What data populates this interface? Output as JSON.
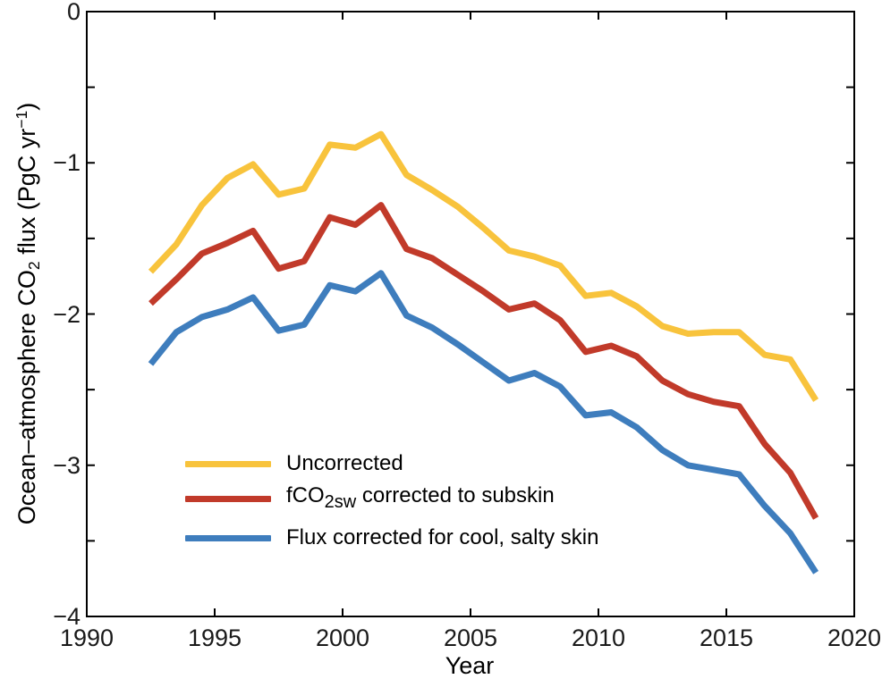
{
  "chart_data": {
    "type": "line",
    "title": "",
    "xlabel": "Year",
    "ylabel": "Ocean–atmosphere CO2 flux (PgC yr−1)",
    "ylabel_parts": [
      "Ocean–atmosphere CO",
      "2",
      " flux (PgC yr",
      "−1",
      ")"
    ],
    "xlim": [
      1990,
      2020
    ],
    "ylim": [
      -4,
      0
    ],
    "grid": false,
    "tick_direction": "in",
    "legend_position": "inside-lower-left",
    "frame_color": "#000000",
    "x": [
      1992.5,
      1993.5,
      1994.5,
      1995.5,
      1996.5,
      1997.5,
      1998.5,
      1999.5,
      2000.5,
      2001.5,
      2002.5,
      2003.5,
      2004.5,
      2005.5,
      2006.5,
      2007.5,
      2008.5,
      2009.5,
      2010.5,
      2011.5,
      2012.5,
      2013.5,
      2014.5,
      2015.5,
      2016.5,
      2017.5,
      2018.5
    ],
    "series": [
      {
        "name": "Uncorrected",
        "color": "#F8C33C",
        "values": [
          -1.72,
          -1.54,
          -1.28,
          -1.1,
          -1.01,
          -1.21,
          -1.17,
          -0.88,
          -0.9,
          -0.81,
          -1.08,
          -1.18,
          -1.29,
          -1.43,
          -1.58,
          -1.62,
          -1.68,
          -1.88,
          -1.86,
          -1.95,
          -2.08,
          -2.13,
          -2.12,
          -2.12,
          -2.27,
          -2.3,
          -2.57
        ]
      },
      {
        "name": "fCO2sw corrected to subskin",
        "color": "#C13A2A",
        "values": [
          -1.93,
          -1.77,
          -1.6,
          -1.53,
          -1.45,
          -1.7,
          -1.65,
          -1.36,
          -1.41,
          -1.28,
          -1.57,
          -1.63,
          -1.74,
          -1.85,
          -1.97,
          -1.93,
          -2.04,
          -2.25,
          -2.21,
          -2.28,
          -2.44,
          -2.53,
          -2.58,
          -2.61,
          -2.86,
          -3.05,
          -3.35
        ]
      },
      {
        "name": "Flux corrected for cool, salty skin",
        "color": "#3E7DBD",
        "values": [
          -2.33,
          -2.12,
          -2.02,
          -1.97,
          -1.89,
          -2.11,
          -2.07,
          -1.81,
          -1.85,
          -1.73,
          -2.01,
          -2.09,
          -2.2,
          -2.32,
          -2.44,
          -2.39,
          -2.48,
          -2.67,
          -2.65,
          -2.75,
          -2.9,
          -3.0,
          -3.03,
          -3.06,
          -3.27,
          -3.45,
          -3.71
        ]
      }
    ],
    "xticks": {
      "values": [
        1990,
        1995,
        2000,
        2005,
        2010,
        2015,
        2020
      ],
      "labels": [
        "1990",
        "1995",
        "2000",
        "2005",
        "2010",
        "2015",
        "2020"
      ]
    },
    "yticks": {
      "values": [
        0,
        -1,
        -2,
        -3,
        -4
      ],
      "labels": [
        "0",
        "−1",
        "−2",
        "−3",
        "−4"
      ]
    },
    "y_minor_tick_step": 0.5
  },
  "legend": {
    "items": [
      {
        "label": "Uncorrected"
      },
      {
        "label_pre": "fCO",
        "label_sub": "2sw",
        "label_post": " corrected to subskin"
      },
      {
        "label": "Flux corrected for cool, salty skin"
      }
    ]
  }
}
